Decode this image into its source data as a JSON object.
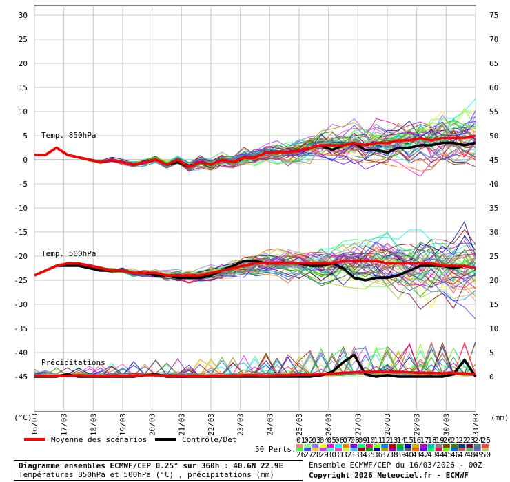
{
  "chart_data": {
    "type": "line",
    "title": "Diagramme ensembles ECMWF/CEP 0.25° sur 360h : 40.6N 22.9E",
    "subtitle": "Températures 850hPa et 500hPa (°C) , précipitations (mm)",
    "left_axis": {
      "label": "(°C)",
      "ticks": [
        30,
        25,
        20,
        15,
        10,
        5,
        0,
        -5,
        -10,
        -15,
        -20,
        -25,
        -30,
        -35,
        -40,
        -45
      ],
      "ylim": [
        -52,
        31
      ]
    },
    "right_axis": {
      "label": "(mm)",
      "ticks": [
        75,
        70,
        65,
        60,
        55,
        50,
        45,
        40,
        35,
        30,
        25,
        20,
        15,
        10,
        5,
        0
      ]
    },
    "x_ticks": [
      "16/03",
      "17/03",
      "18/03",
      "19/03",
      "20/03",
      "21/03",
      "22/03",
      "23/03",
      "24/03",
      "25/03",
      "26/03",
      "27/03",
      "28/03",
      "29/03",
      "30/03",
      "31/03"
    ],
    "grid": true,
    "panel_labels": [
      "Temp. 850hPa",
      "Temp. 500hPa",
      "Précipitations"
    ],
    "series": [
      {
        "name": "Moyenne des scénarios",
        "color": "#ff0000",
        "panels": {
          "t850": [
            1,
            1,
            2.5,
            1,
            0.5,
            0,
            -0.5,
            0,
            -0.5,
            -1,
            -0.5,
            0,
            -1,
            0,
            -1.5,
            -0.5,
            -1,
            0,
            -0.5,
            0.5,
            0.5,
            1.5,
            1.5,
            1.5,
            2,
            2.5,
            3,
            3,
            3,
            3.5,
            3,
            3.5,
            3.5,
            4,
            4,
            4.5,
            4,
            4.5,
            4.5,
            4.5,
            5
          ],
          "t500": [
            -24,
            -23,
            -22,
            -21.5,
            -21.5,
            -22,
            -22.5,
            -23,
            -23,
            -23.5,
            -23.5,
            -23.5,
            -24,
            -24,
            -24,
            -24,
            -23.5,
            -23,
            -22.5,
            -22,
            -21.5,
            -21.5,
            -21.5,
            -21.5,
            -21.5,
            -21.5,
            -21.5,
            -21.5,
            -21,
            -21,
            -21,
            -21,
            -21.5,
            -21.5,
            -21.5,
            -21.5,
            -21.5,
            -22,
            -22,
            -22,
            -22.5
          ],
          "precip": [
            0.2,
            0.2,
            0.1,
            0.2,
            0.3,
            0.2,
            0.1,
            0.1,
            0.2,
            0.2,
            0.3,
            0.3,
            0.2,
            0.1,
            0.1,
            0.1,
            0.1,
            0.2,
            0.2,
            0.3,
            0.3,
            0.2,
            0.3,
            0.3,
            0.4,
            0.4,
            0.5,
            0.6,
            0.8,
            0.9,
            1,
            1,
            1,
            1,
            0.9,
            0.8,
            0.8,
            0.7,
            0.8,
            0.6,
            0.5
          ]
        }
      },
      {
        "name": "Contrôle/Det",
        "color": "#000000",
        "panels": {
          "t850": [
            1,
            1,
            2.5,
            1,
            0.5,
            0,
            -0.5,
            0,
            -0.5,
            -1,
            -0.5,
            0,
            -1,
            -0.5,
            -1.5,
            -0.5,
            -1,
            0,
            -0.5,
            0.5,
            0.5,
            1.5,
            1.5,
            1.5,
            2,
            2.5,
            3,
            2,
            3,
            3.5,
            2,
            2,
            1.5,
            2.5,
            2.5,
            3,
            3,
            3.5,
            3.5,
            3,
            3.5
          ],
          "t500": [
            -24,
            -23,
            -22,
            -22,
            -22,
            -22.5,
            -23,
            -23,
            -23,
            -23.5,
            -23.5,
            -24,
            -24,
            -24.5,
            -24.5,
            -24.5,
            -24,
            -23,
            -22,
            -21,
            -21,
            -21.5,
            -21.5,
            -21.5,
            -21.5,
            -22,
            -22,
            -21.5,
            -22.5,
            -24.5,
            -25,
            -24.5,
            -24.5,
            -24,
            -23,
            -22,
            -22,
            -22,
            -22.5,
            -22,
            -22.5
          ],
          "precip": [
            0,
            0,
            0,
            0.5,
            0,
            0,
            0,
            0,
            0,
            0,
            0.3,
            0.5,
            0,
            0,
            0,
            0,
            0,
            0,
            0,
            0,
            0,
            0,
            0,
            0,
            0,
            0,
            0.3,
            1,
            3,
            4.5,
            0.5,
            0,
            0.3,
            0,
            0,
            0,
            0,
            0,
            0.5,
            3.5,
            0
          ]
        }
      }
    ],
    "perturbations_label": "50 Perts.",
    "perturbation_ids": [
      "01",
      "02",
      "03",
      "04",
      "05",
      "06",
      "07",
      "08",
      "09",
      "10",
      "11",
      "12",
      "13",
      "14",
      "15",
      "16",
      "17",
      "18",
      "19",
      "20",
      "21",
      "22",
      "23",
      "24",
      "25",
      "26",
      "27",
      "28",
      "29",
      "30",
      "31",
      "32",
      "33",
      "34",
      "35",
      "36",
      "37",
      "38",
      "39",
      "40",
      "41",
      "42",
      "43",
      "44",
      "45",
      "46",
      "47",
      "48",
      "49",
      "50"
    ],
    "perturbation_colors": [
      "#ff8080",
      "#80ff80",
      "#8080ff",
      "#ffff00",
      "#ff00ff",
      "#00ffff",
      "#ff8000",
      "#8000ff",
      "#00ff80",
      "#ff0080",
      "#80ff00",
      "#0080ff",
      "#c00000",
      "#00c000",
      "#0000c0",
      "#c0c000",
      "#c000c0",
      "#00c0c0",
      "#808080",
      "#804000",
      "#408000",
      "#004080",
      "#800040",
      "#408080",
      "#ff4040",
      "#40ff40",
      "#4040ff",
      "#ffc040",
      "#c040ff",
      "#40ffc0",
      "#ff40c0",
      "#c0ff40",
      "#40c0ff",
      "#a00000",
      "#00a000",
      "#0000a0",
      "#a0a000",
      "#a000a0",
      "#00a0a0",
      "#606060",
      "#ff6000",
      "#6000ff",
      "#00ff60",
      "#ff0060",
      "#60ff00",
      "#0060ff",
      "#c06060",
      "#60c060",
      "#6060c0",
      "#c0c060"
    ]
  },
  "legend": {
    "mean_label": "Moyenne des scénarios",
    "control_label": "Contrôle/Det"
  },
  "footer": {
    "title_bold": "Diagramme ensembles ECMWF/CEP 0.25° sur 360h : 40.6N 22.9E",
    "subtitle": "Températures 850hPa et 500hPa (°C) , précipitations (mm)",
    "run_info": "Ensemble ECMWF/CEP du 16/03/2026 - 00Z",
    "copyright": "Copyright 2026 Meteociel.fr - ECMWF"
  }
}
